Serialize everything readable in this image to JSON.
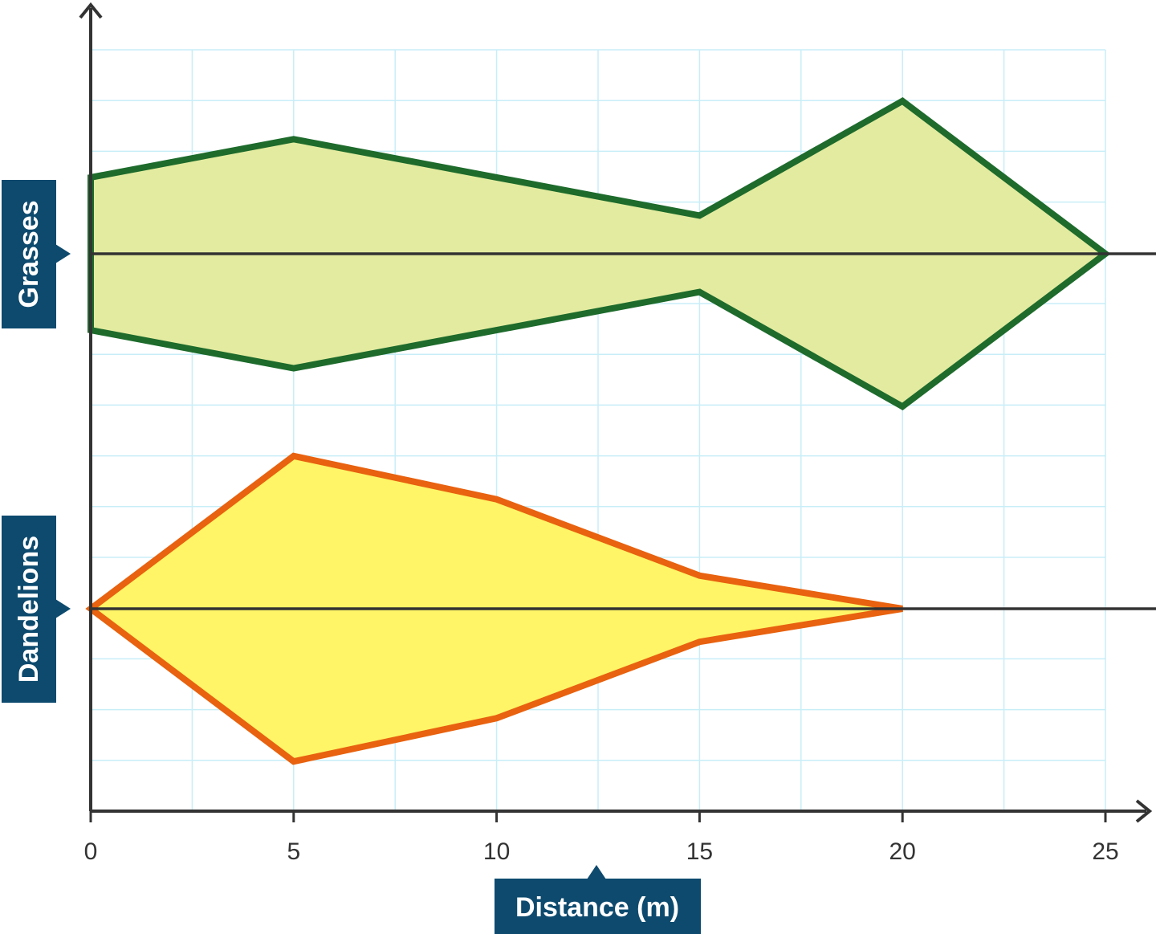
{
  "chart_data": {
    "type": "area",
    "subtype": "kite-diagram",
    "xlabel": "Distance (m)",
    "x_ticks": [
      "0",
      "5",
      "10",
      "15",
      "20",
      "25"
    ],
    "xlim": [
      0,
      25
    ],
    "grid": true,
    "series": [
      {
        "name": "Grasses",
        "x": [
          0,
          5,
          10,
          15,
          20,
          25
        ],
        "half_width": [
          3.0,
          4.5,
          3.0,
          1.5,
          6.0,
          0
        ],
        "color": "#1e6b2c",
        "fill": "#e3eba0"
      },
      {
        "name": "Dandelions",
        "x": [
          0,
          5,
          10,
          15,
          20
        ],
        "half_width": [
          0,
          6.0,
          4.3,
          1.3,
          0
        ],
        "color": "#e8620f",
        "fill": "#fff566"
      }
    ]
  },
  "colors": {
    "grid": "#c8eef8",
    "axis": "#333333",
    "label_bg": "#0d4a6e",
    "label_text": "#ffffff"
  }
}
